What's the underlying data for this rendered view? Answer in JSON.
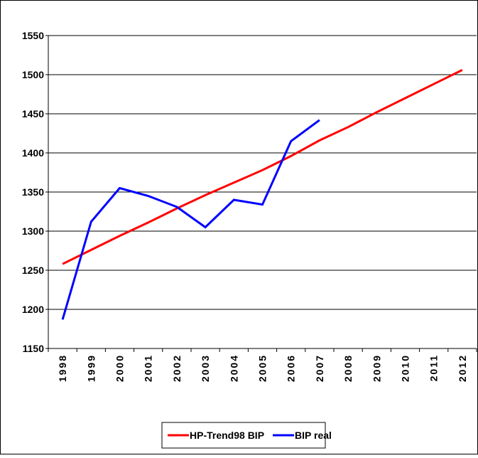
{
  "chart_data": {
    "type": "line",
    "categories": [
      "1998",
      "1999",
      "2000",
      "2001",
      "2002",
      "2003",
      "2004",
      "2005",
      "2006",
      "2007",
      "2008",
      "2009",
      "2010",
      "2011",
      "2012"
    ],
    "series": [
      {
        "name": "HP-Trend98 BIP",
        "color": "#ff0000",
        "values": [
          1258,
          1276,
          1294,
          1311,
          1329,
          1346,
          1362,
          1378,
          1396,
          1416,
          1433,
          1452,
          1470,
          1488,
          1506
        ]
      },
      {
        "name": "BIP real",
        "color": "#0000ff",
        "values": [
          1187,
          1312,
          1355,
          1345,
          1331,
          1305,
          1340,
          1334,
          1415,
          1442,
          null,
          null,
          null,
          null,
          null
        ]
      }
    ],
    "ylim": [
      1150,
      1550
    ],
    "yticks": [
      1150,
      1200,
      1250,
      1300,
      1350,
      1400,
      1450,
      1500,
      1550
    ],
    "grid": true
  }
}
